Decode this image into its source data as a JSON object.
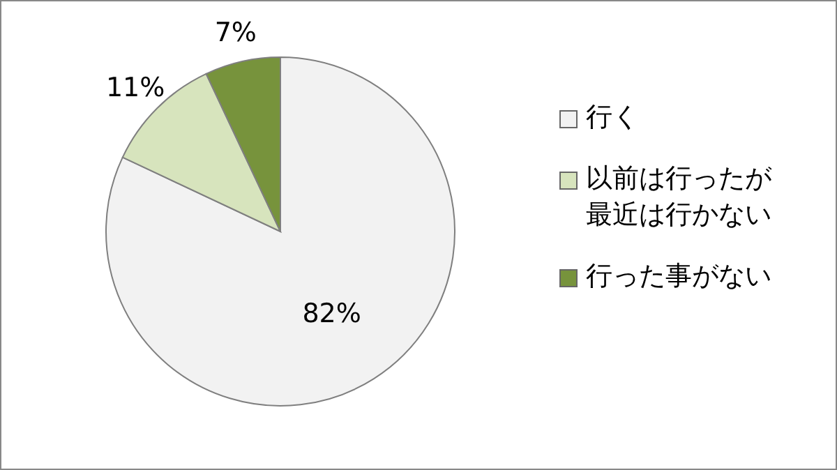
{
  "chart_data": {
    "type": "pie",
    "categories": [
      "行く",
      "以前は行ったが最近は行かない",
      "行った事がない"
    ],
    "values": [
      82,
      11,
      7
    ],
    "colors": [
      "#f2f2f2",
      "#d7e4bd",
      "#77933c"
    ],
    "value_labels": [
      "82%",
      "11%",
      "7%"
    ],
    "legend": "right"
  }
}
